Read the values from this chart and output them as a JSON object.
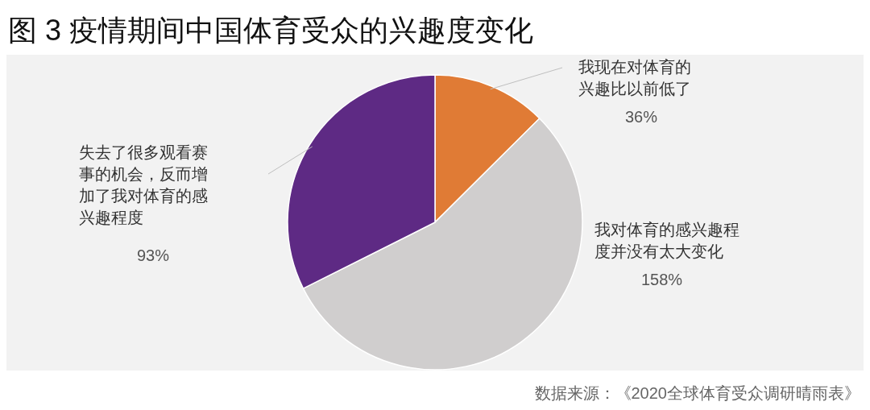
{
  "chart_data": {
    "type": "pie",
    "title": "图 3 疫情期间中国体育受众的兴趣度变化",
    "categories": [
      "我现在对体育的兴趣比以前低了",
      "我对体育的感兴趣程度并没有太大变化",
      "失去了很多观看赛事的机会，反而增加了我对体育的感兴趣程度"
    ],
    "values": [
      36,
      158,
      93
    ],
    "value_labels": [
      "36%",
      "158%",
      "93%"
    ],
    "colors": [
      "#e07b35",
      "#d0cece",
      "#5e2a84"
    ],
    "annotations": [
      "数据来源：《2020全球体育受众调研晴雨表》"
    ],
    "legend": false
  }
}
